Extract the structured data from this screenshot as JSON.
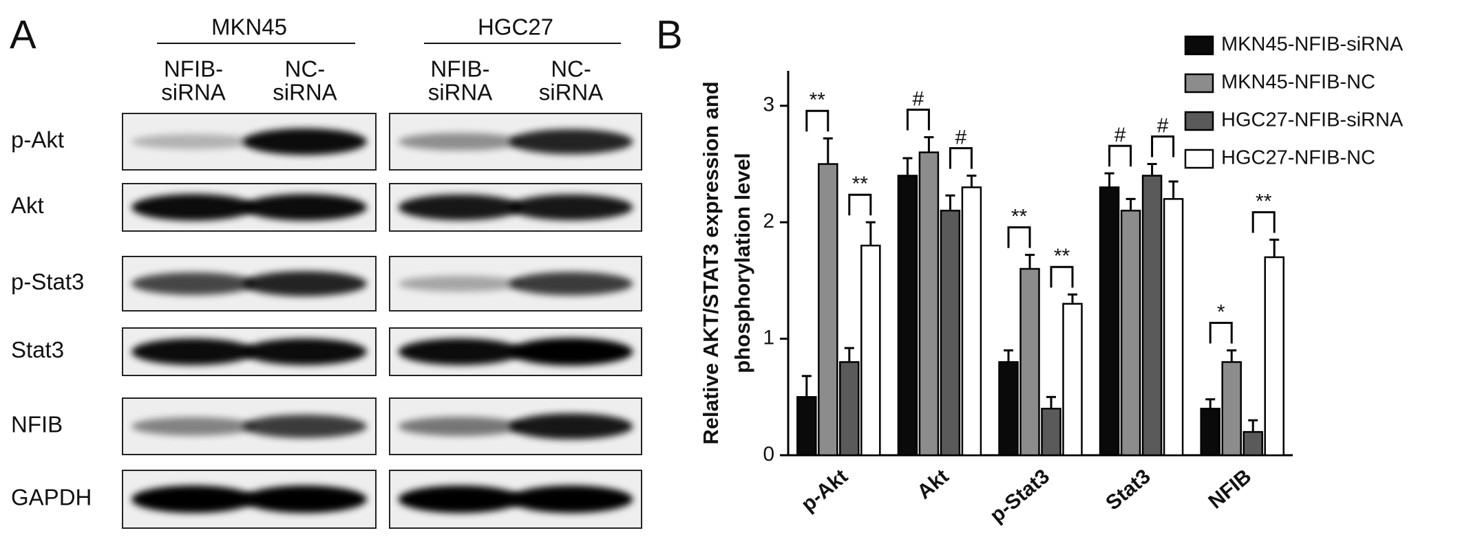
{
  "panel_a": {
    "label": "A",
    "groups": [
      {
        "name": "MKN45",
        "lanes": [
          [
            "NFIB-",
            "siRNA"
          ],
          [
            "NC-",
            "siRNA"
          ]
        ]
      },
      {
        "name": "HGC27",
        "lanes": [
          [
            "NFIB-",
            "siRNA"
          ],
          [
            "NC-",
            "siRNA"
          ]
        ]
      }
    ],
    "rows": [
      "p-Akt",
      "Akt",
      "p-Stat3",
      "Stat3",
      "NFIB",
      "GAPDH"
    ]
  },
  "chart_data": {
    "type": "bar",
    "panel_label": "B",
    "ylabel": [
      "Relative AKT/STAT3 expression and",
      "phosphorylation level"
    ],
    "categories": [
      "p-Akt",
      "Akt",
      "p-Stat3",
      "Stat3",
      "NFIB"
    ],
    "series": [
      {
        "name": "MKN45-NFIB-siRNA",
        "color": "#0a0a0a",
        "values": [
          0.5,
          2.4,
          0.8,
          2.3,
          0.4
        ],
        "errors": [
          0.18,
          0.15,
          0.1,
          0.12,
          0.08
        ]
      },
      {
        "name": "MKN45-NFIB-NC",
        "color": "#8c8c8c",
        "values": [
          2.5,
          2.6,
          1.6,
          2.1,
          0.8
        ],
        "errors": [
          0.22,
          0.13,
          0.12,
          0.1,
          0.1
        ]
      },
      {
        "name": "HGC27-NFIB-siRNA",
        "color": "#5a5a5a",
        "values": [
          0.8,
          2.1,
          0.4,
          2.4,
          0.2
        ],
        "errors": [
          0.12,
          0.13,
          0.1,
          0.1,
          0.1
        ]
      },
      {
        "name": "HGC27-NFIB-NC",
        "color": "#ffffff",
        "values": [
          1.8,
          2.3,
          1.3,
          2.2,
          1.7
        ],
        "errors": [
          0.2,
          0.1,
          0.08,
          0.15,
          0.15
        ]
      }
    ],
    "significance": [
      [
        "**",
        "**"
      ],
      [
        "#",
        "#"
      ],
      [
        "**",
        "**"
      ],
      [
        "#",
        "#"
      ],
      [
        "*",
        "**"
      ]
    ],
    "ylim": [
      0,
      3.3
    ],
    "yticks": [
      0,
      1,
      2,
      3
    ],
    "legend": "upper right"
  }
}
